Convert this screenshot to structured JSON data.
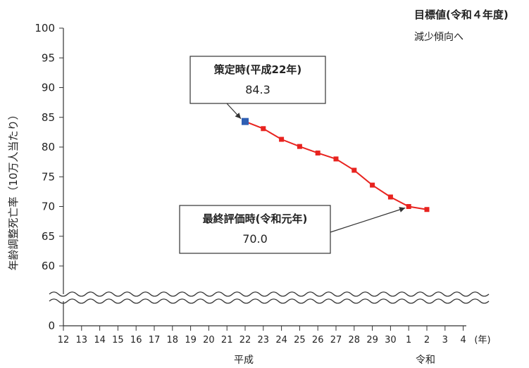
{
  "chart_data": {
    "type": "line",
    "ylabel": "年齢調整死亡率（10万人当たり）",
    "xunit": "(年)",
    "yticks": [
      0,
      60,
      65,
      70,
      75,
      80,
      85,
      90,
      95,
      100
    ],
    "ylim_upper": [
      55,
      100
    ],
    "y_axis_break": true,
    "x_ticks": [
      "12",
      "13",
      "14",
      "15",
      "16",
      "17",
      "18",
      "19",
      "20",
      "21",
      "22",
      "23",
      "24",
      "25",
      "26",
      "27",
      "28",
      "29",
      "30",
      "1",
      "2",
      "3",
      "4"
    ],
    "eras": [
      {
        "label": "平成",
        "at_tick": "22"
      },
      {
        "label": "令和",
        "at_tick": "2"
      }
    ],
    "series": [
      {
        "color": "#e8231f",
        "points": [
          {
            "x": "22",
            "y": 84.3
          },
          {
            "x": "23",
            "y": 83.1
          },
          {
            "x": "24",
            "y": 81.3
          },
          {
            "x": "25",
            "y": 80.1
          },
          {
            "x": "26",
            "y": 79.0
          },
          {
            "x": "27",
            "y": 78.0
          },
          {
            "x": "28",
            "y": 76.1
          },
          {
            "x": "29",
            "y": 73.6
          },
          {
            "x": "30",
            "y": 71.6
          },
          {
            "x": "1",
            "y": 70.0
          },
          {
            "x": "2",
            "y": 69.5
          }
        ]
      }
    ],
    "highlight_point_color": "#2f5fb3",
    "annotations": [
      {
        "title": "策定時(平成22年)",
        "value": "84.3",
        "x": "22",
        "y": 84.3
      },
      {
        "title": "最終評価時(令和元年)",
        "value": "70.0",
        "x": "1",
        "y": 70.0
      }
    ],
    "target": {
      "title": "目標値(令和４年度)",
      "text": "減少傾向へ"
    }
  }
}
